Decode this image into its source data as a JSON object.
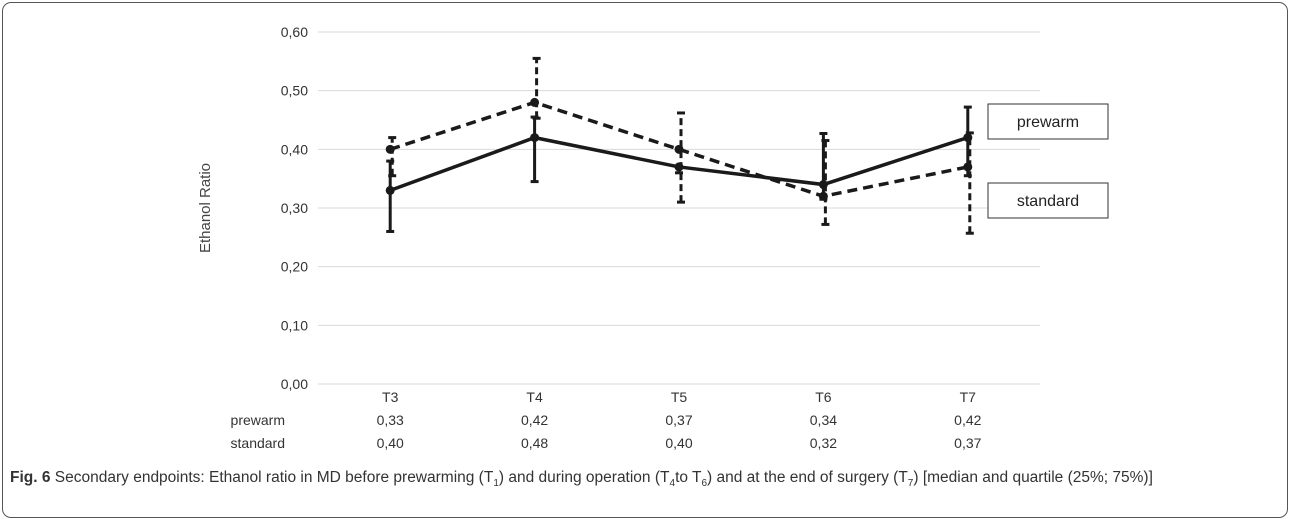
{
  "chart_data": {
    "type": "line",
    "categories": [
      "T3",
      "T4",
      "T5",
      "T6",
      "T7"
    ],
    "ylabel": "Ethanol Ratio",
    "xlabel": "",
    "ylim": [
      0,
      0.6
    ],
    "y_ticks": [
      "0,00",
      "0,10",
      "0,20",
      "0,30",
      "0,40",
      "0,50",
      "0,60"
    ],
    "grid": true,
    "series": [
      {
        "name": "prewarm",
        "values": [
          0.33,
          0.42,
          0.37,
          0.34,
          0.42
        ],
        "values_label": [
          "0,33",
          "0,42",
          "0,37",
          "0,34",
          "0,42"
        ],
        "lower": [
          0.26,
          0.345,
          0.36,
          0.315,
          0.355
        ],
        "upper": [
          0.38,
          0.455,
          0.37,
          0.427,
          0.472
        ],
        "style": "solid",
        "color": "#1a1a1a"
      },
      {
        "name": "standard",
        "values": [
          0.4,
          0.48,
          0.4,
          0.32,
          0.37
        ],
        "values_label": [
          "0,40",
          "0,48",
          "0,40",
          "0,32",
          "0,37"
        ],
        "lower": [
          0.355,
          0.453,
          0.31,
          0.272,
          0.257
        ],
        "upper": [
          0.42,
          0.555,
          0.462,
          0.415,
          0.428
        ],
        "style": "dashed",
        "color": "#1a1a1a"
      }
    ]
  },
  "caption": {
    "label": "Fig. 6",
    "text_a": " Secondary endpoints: Ethanol ratio in MD before prewarming (T",
    "sub_a": "1",
    "text_b": ") and during operation (T",
    "sub_b": "4",
    "text_c": "to T",
    "sub_c": "6",
    "text_d": ") and at the end of surgery (T",
    "sub_d": "7",
    "text_e": ") [median and quartile (25%; 75%)]"
  }
}
